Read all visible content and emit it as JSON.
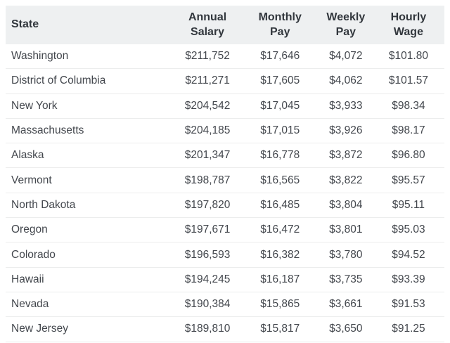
{
  "chart_data": {
    "type": "table",
    "columns": [
      "State",
      "Annual Salary",
      "Monthly Pay",
      "Weekly Pay",
      "Hourly Wage"
    ],
    "rows": [
      [
        "Washington",
        "$211,752",
        "$17,646",
        "$4,072",
        "$101.80"
      ],
      [
        "District of Columbia",
        "$211,271",
        "$17,605",
        "$4,062",
        "$101.57"
      ],
      [
        "New York",
        "$204,542",
        "$17,045",
        "$3,933",
        "$98.34"
      ],
      [
        "Massachusetts",
        "$204,185",
        "$17,015",
        "$3,926",
        "$98.17"
      ],
      [
        "Alaska",
        "$201,347",
        "$16,778",
        "$3,872",
        "$96.80"
      ],
      [
        "Vermont",
        "$198,787",
        "$16,565",
        "$3,822",
        "$95.57"
      ],
      [
        "North Dakota",
        "$197,820",
        "$16,485",
        "$3,804",
        "$95.11"
      ],
      [
        "Oregon",
        "$197,671",
        "$16,472",
        "$3,801",
        "$95.03"
      ],
      [
        "Colorado",
        "$196,593",
        "$16,382",
        "$3,780",
        "$94.52"
      ],
      [
        "Hawaii",
        "$194,245",
        "$16,187",
        "$3,735",
        "$93.39"
      ],
      [
        "Nevada",
        "$190,384",
        "$15,865",
        "$3,661",
        "$91.53"
      ],
      [
        "New Jersey",
        "$189,810",
        "$15,817",
        "$3,650",
        "$91.25"
      ]
    ]
  },
  "colors": {
    "background": "#ffffff",
    "header_bg": "#eef0f1",
    "header_text": "#32373d",
    "body_text": "#43474d",
    "row_border": "#eceded"
  }
}
